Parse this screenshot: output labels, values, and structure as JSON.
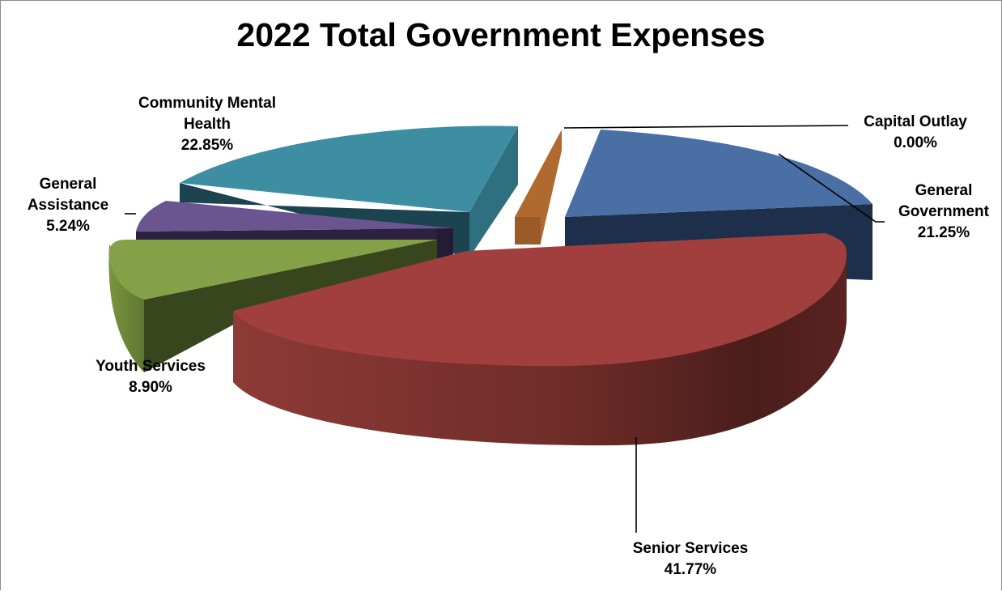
{
  "chart_data": {
    "type": "pie",
    "style": "3d-exploded",
    "title": "2022 Total Government Expenses",
    "slices": [
      {
        "name": "General Government",
        "value": 21.25,
        "label_lines": [
          "General",
          "Government"
        ],
        "pct": "21.25%",
        "color": "#4a6fa5"
      },
      {
        "name": "Senior Services",
        "value": 41.77,
        "label_lines": [
          "Senior Services"
        ],
        "pct": "41.77%",
        "color": "#a03f3e"
      },
      {
        "name": "Youth Services",
        "value": 8.9,
        "label_lines": [
          "Youth Services"
        ],
        "pct": "8.90%",
        "color": "#85a148"
      },
      {
        "name": "General Assistance",
        "value": 5.24,
        "label_lines": [
          "General",
          "Assistance"
        ],
        "pct": "5.24%",
        "color": "#6b5590"
      },
      {
        "name": "Community Mental Health",
        "value": 22.85,
        "label_lines": [
          "Community Mental",
          "Health"
        ],
        "pct": "22.85%",
        "color": "#3e8ea3"
      },
      {
        "name": "Capital Outlay",
        "value": 0.0,
        "label_lines": [
          "Capital Outlay"
        ],
        "pct": "0.00%",
        "color": "#b06a30"
      }
    ]
  }
}
